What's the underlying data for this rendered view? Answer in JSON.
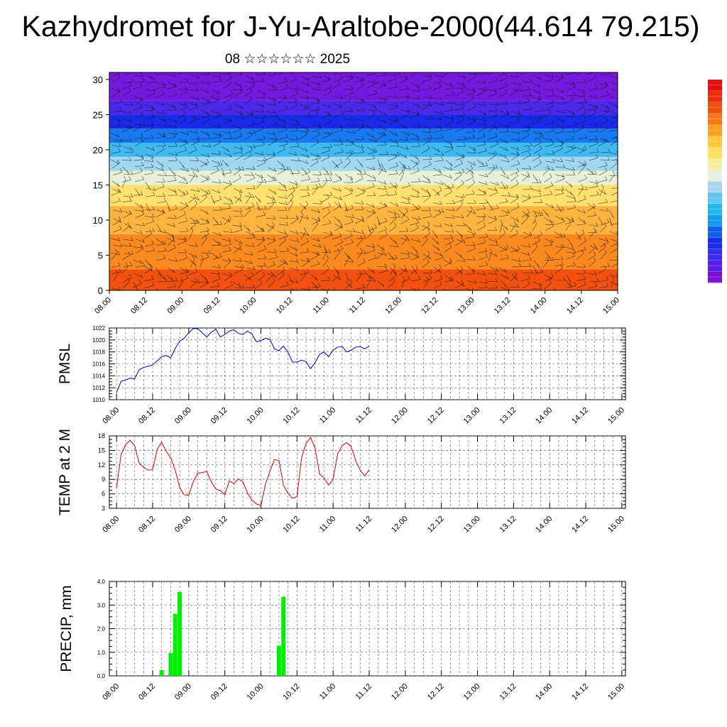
{
  "title": "Kazhydromet for J-Yu-Araltobe-2000(44.614 79.215)",
  "subtitle": "08 ☆☆☆☆☆☆ 2025",
  "colorbar": {
    "colors": [
      "#7a10d8",
      "#5a1ee8",
      "#3a2cf0",
      "#1a2cf0",
      "#1060f0",
      "#1898f0",
      "#20b8ee",
      "#60c8f0",
      "#a8d8f0",
      "#e8f0e0",
      "#f8f0a0",
      "#ffe060",
      "#ffc840",
      "#ffa020",
      "#f87818",
      "#f05010",
      "#e83010",
      "#e01010"
    ]
  },
  "chart_data": [
    {
      "type": "heatmap",
      "name": "cross-section",
      "title": "",
      "xlabel": "",
      "ylabel": "",
      "ylim": [
        0,
        31
      ],
      "yticks": [
        0,
        5,
        10,
        15,
        20,
        25,
        30
      ],
      "xticks": [
        "08.00",
        "08.12",
        "09.00",
        "09.12",
        "10.00",
        "10.12",
        "11.00",
        "11.12",
        "12.00",
        "12.12",
        "13.00",
        "13.12",
        "14.00",
        "14.12",
        "15.00"
      ],
      "bands": [
        {
          "from": 0,
          "to": 3,
          "color": "#f05010"
        },
        {
          "from": 3,
          "to": 8,
          "color": "#f88a20"
        },
        {
          "from": 8,
          "to": 12,
          "color": "#ffb440"
        },
        {
          "from": 12,
          "to": 15,
          "color": "#ffe070"
        },
        {
          "from": 15,
          "to": 17,
          "color": "#e8f0d8"
        },
        {
          "from": 17,
          "to": 19,
          "color": "#a0d8f0"
        },
        {
          "from": 19,
          "to": 21,
          "color": "#40b8f0"
        },
        {
          "from": 21,
          "to": 23,
          "color": "#1878f0"
        },
        {
          "from": 23,
          "to": 25,
          "color": "#1a2ae8"
        },
        {
          "from": 25,
          "to": 27,
          "color": "#4a28e8"
        },
        {
          "from": 27,
          "to": 31,
          "color": "#7418dc"
        }
      ]
    },
    {
      "type": "line",
      "name": "pmsl",
      "ylabel": "PMSL",
      "ylim": [
        1010,
        1022
      ],
      "yticks": [
        1010,
        1012,
        1014,
        1016,
        1018,
        1020,
        1022
      ],
      "xticks": [
        "08.00",
        "08.12",
        "09.00",
        "09.12",
        "10.00",
        "10.12",
        "11.00",
        "11.12",
        "12.00",
        "12.12",
        "13.00",
        "13.12",
        "14.00",
        "14.12",
        "15.00"
      ],
      "color": "#0000cc",
      "x": [
        0,
        0.125,
        0.25,
        0.375,
        0.5,
        0.625,
        0.75,
        0.875,
        1,
        1.125,
        1.25,
        1.375,
        1.5,
        1.625,
        1.75,
        1.875,
        2,
        2.125,
        2.25,
        2.375,
        2.5,
        2.625,
        2.75,
        2.875,
        3,
        3.125,
        3.25,
        3.375,
        3.5,
        3.625,
        3.75,
        3.875,
        4,
        4.125,
        4.25,
        4.375,
        4.5,
        4.625,
        4.75,
        4.875,
        5,
        5.125,
        5.25,
        5.375,
        5.5,
        5.625,
        5.75,
        5.875,
        6,
        6.125,
        6.25,
        6.375,
        6.5,
        6.625,
        6.75,
        6.875,
        7
      ],
      "values": [
        1011.2,
        1013.1,
        1013.3,
        1013.6,
        1013.5,
        1015.0,
        1015.4,
        1015.6,
        1015.8,
        1016.5,
        1017.2,
        1017.4,
        1017.0,
        1018.6,
        1019.8,
        1020.3,
        1021.2,
        1021.9,
        1021.9,
        1021.2,
        1020.5,
        1021.3,
        1021.8,
        1020.5,
        1020.9,
        1021.5,
        1021.7,
        1021.1,
        1020.9,
        1021.5,
        1021.0,
        1019.7,
        1019.9,
        1020.3,
        1020.1,
        1018.5,
        1018.2,
        1019.0,
        1017.9,
        1016.3,
        1016.3,
        1016.6,
        1016.4,
        1015.2,
        1016.2,
        1017.6,
        1018.0,
        1017.2,
        1018.3,
        1018.8,
        1018.9,
        1018.0,
        1018.3,
        1018.8,
        1018.9,
        1018.5,
        1019.0
      ]
    },
    {
      "type": "line",
      "name": "temp",
      "ylabel": "TEMP at 2 M",
      "ylim": [
        3,
        18
      ],
      "yticks": [
        3,
        6,
        9,
        12,
        15,
        18
      ],
      "xticks": [
        "08.00",
        "08.12",
        "09.00",
        "09.12",
        "10.00",
        "10.12",
        "11.00",
        "11.12",
        "12.00",
        "12.12",
        "13.00",
        "13.12",
        "14.00",
        "14.12",
        "15.00"
      ],
      "color": "#dd0000",
      "x": [
        0,
        0.125,
        0.25,
        0.375,
        0.5,
        0.625,
        0.75,
        0.875,
        1,
        1.125,
        1.25,
        1.375,
        1.5,
        1.625,
        1.75,
        1.875,
        2,
        2.125,
        2.25,
        2.375,
        2.5,
        2.625,
        2.75,
        2.875,
        3,
        3.125,
        3.25,
        3.375,
        3.5,
        3.625,
        3.75,
        3.875,
        4,
        4.125,
        4.25,
        4.375,
        4.5,
        4.625,
        4.75,
        4.875,
        5,
        5.125,
        5.25,
        5.375,
        5.5,
        5.625,
        5.75,
        5.875,
        6,
        6.125,
        6.25,
        6.375,
        6.5,
        6.625,
        6.75,
        6.875,
        7
      ],
      "values": [
        7.3,
        14.1,
        16.2,
        17.1,
        16.0,
        12.4,
        11.5,
        10.9,
        11.0,
        15.2,
        16.7,
        14.8,
        13.5,
        10.9,
        7.3,
        5.8,
        5.7,
        8.5,
        10.3,
        10.4,
        10.7,
        8.5,
        7.0,
        6.7,
        5.8,
        8.7,
        8.1,
        9.1,
        8.5,
        6.2,
        4.7,
        3.9,
        3.6,
        8.0,
        10.7,
        13.1,
        12.9,
        7.8,
        6.1,
        5.1,
        5.4,
        13.5,
        16.4,
        17.7,
        15.5,
        10.1,
        9.3,
        7.8,
        9.0,
        14.3,
        16.0,
        16.6,
        15.8,
        12.9,
        10.9,
        9.7,
        11.0
      ]
    },
    {
      "type": "bar",
      "name": "precip",
      "ylabel": "PRECIP, mm",
      "ylim": [
        0,
        4
      ],
      "yticks": [
        "0.0",
        "1.0",
        "2.0",
        "3.0",
        "4.0"
      ],
      "xticks": [
        "08.00",
        "08.12",
        "09.00",
        "09.12",
        "10.00",
        "10.12",
        "11.00",
        "11.12",
        "12.00",
        "12.12",
        "13.00",
        "13.12",
        "14.00",
        "14.12",
        "15.00"
      ],
      "color": "#00ee00",
      "bars": [
        {
          "x": 1.25,
          "value": 0.25
        },
        {
          "x": 1.5,
          "value": 0.97
        },
        {
          "x": 1.625,
          "value": 2.63
        },
        {
          "x": 1.75,
          "value": 3.55
        },
        {
          "x": 4.5,
          "value": 1.28
        },
        {
          "x": 4.625,
          "value": 3.35
        }
      ]
    }
  ]
}
